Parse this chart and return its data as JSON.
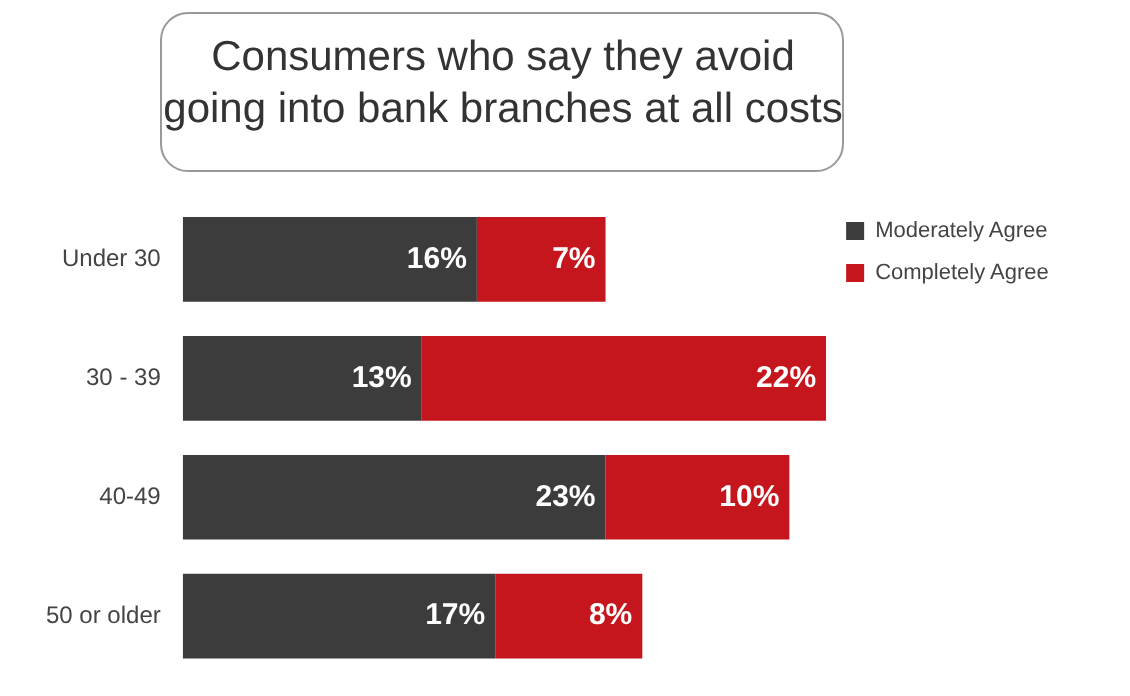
{
  "chart_data": {
    "type": "bar",
    "orientation": "horizontal",
    "stacked": true,
    "title": "Consumers who say they avoid going into bank branches at all costs",
    "categories": [
      "Under 30",
      "30 - 39",
      "40-49",
      "50 or older"
    ],
    "series": [
      {
        "name": "Moderately Agree",
        "color": "#3c3c3c",
        "values": [
          16,
          13,
          23,
          17
        ],
        "value_labels": [
          "16%",
          "13%",
          "23%",
          "17%"
        ]
      },
      {
        "name": "Completely Agree",
        "color": "#c4161c",
        "values": [
          7,
          22,
          10,
          8
        ],
        "value_labels": [
          "7%",
          "22%",
          "10%",
          "8%"
        ]
      }
    ],
    "legend": "top right",
    "grid": false,
    "tick_labels": "y"
  }
}
